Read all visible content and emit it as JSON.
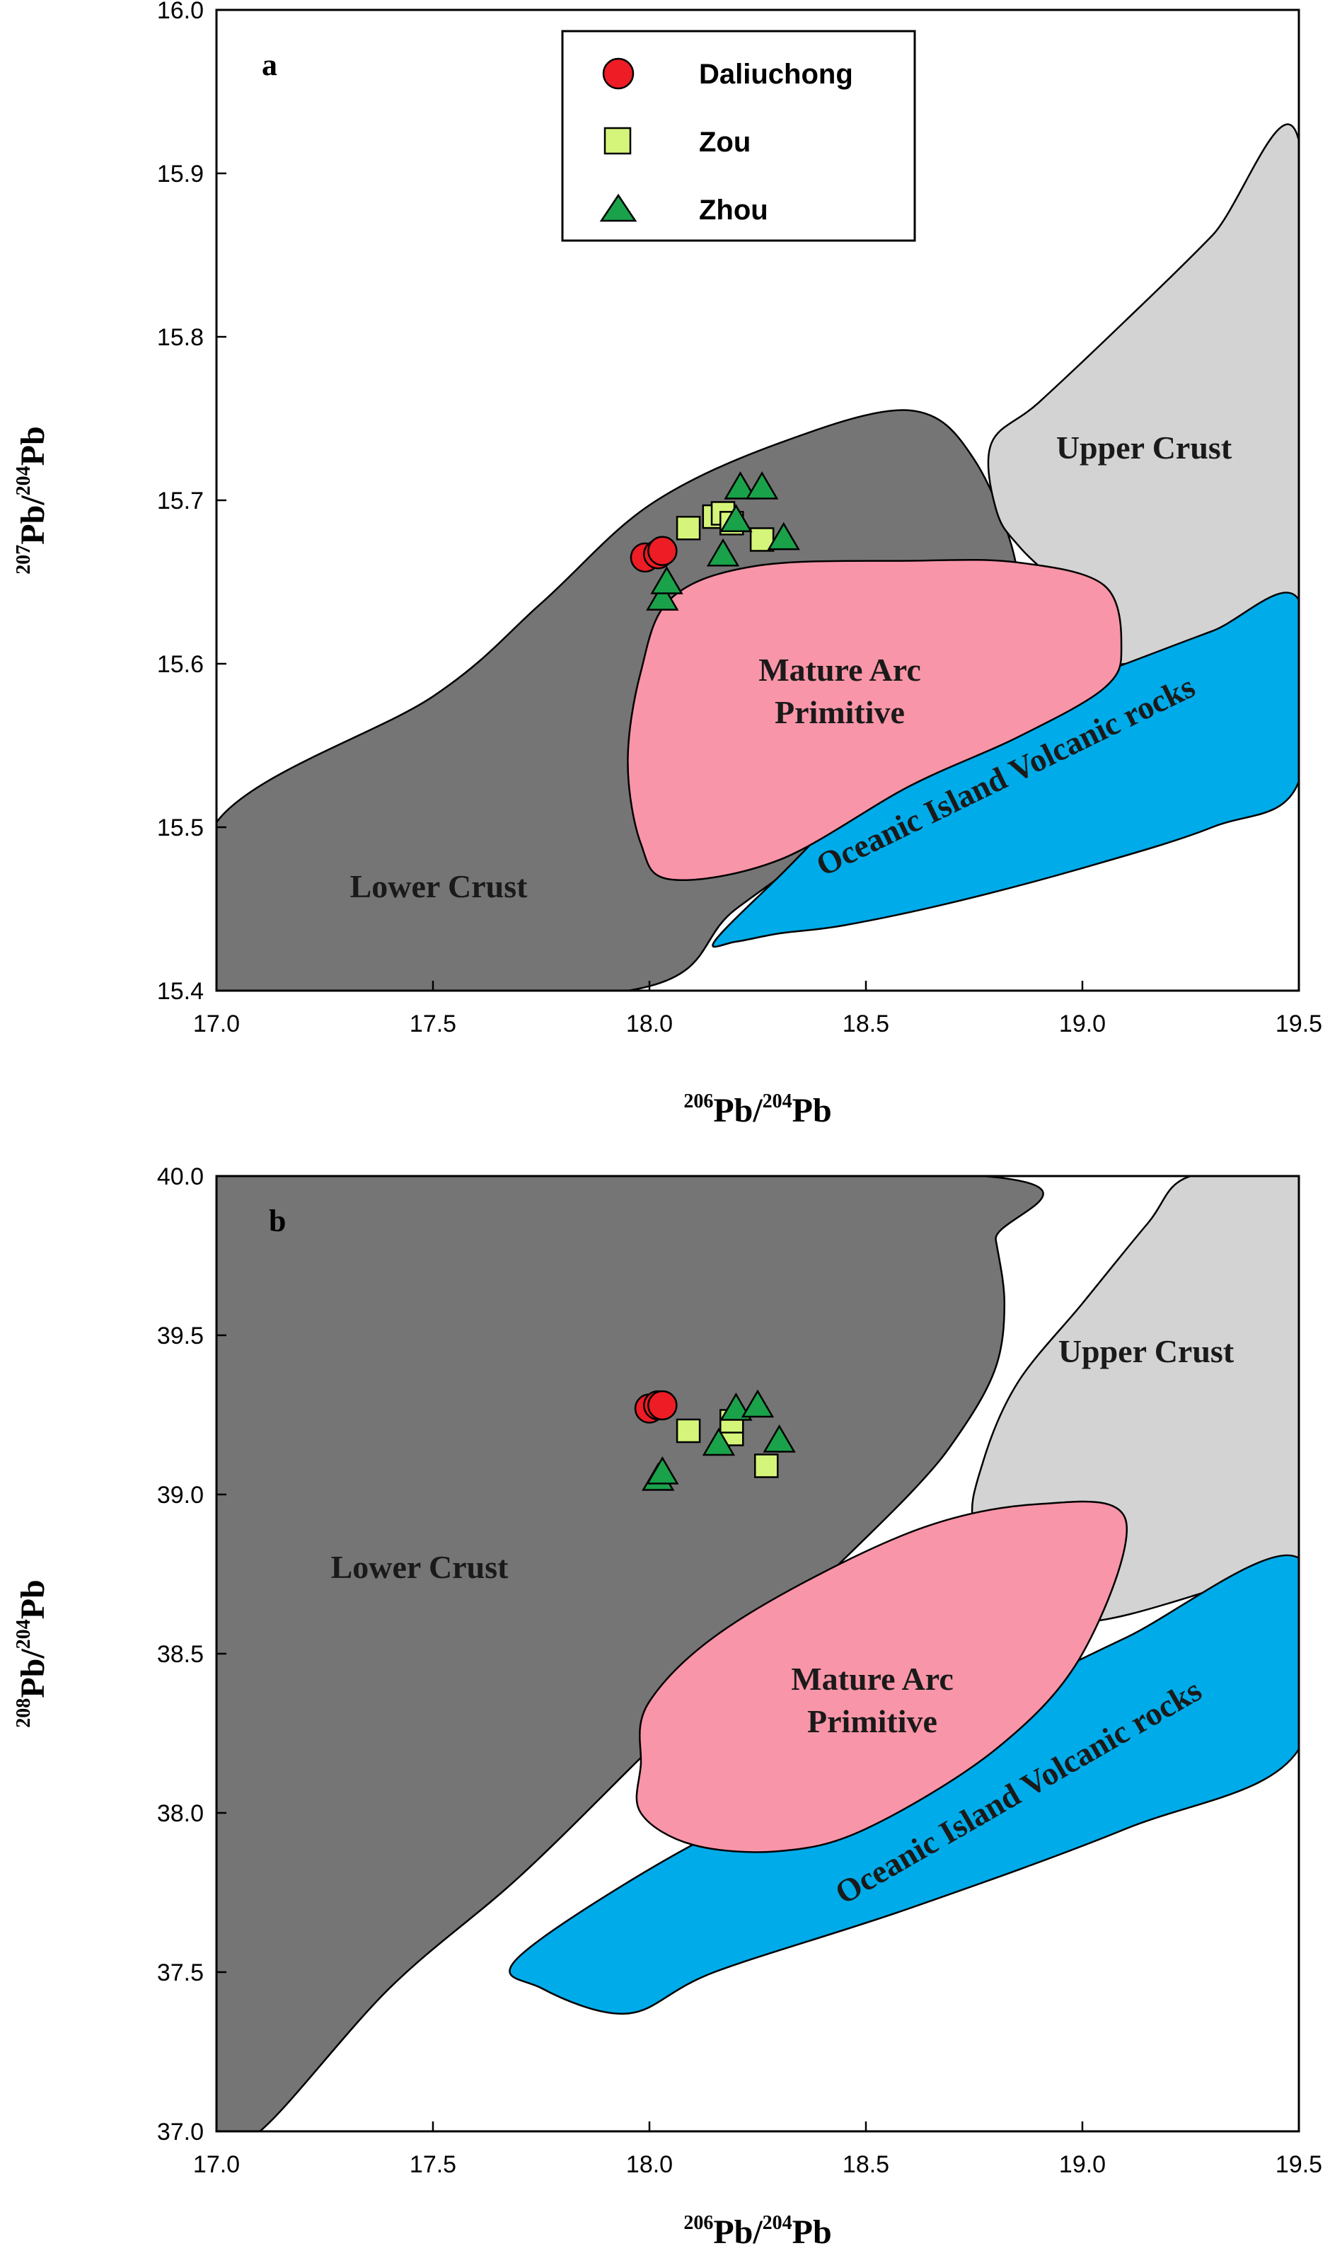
{
  "colors": {
    "lower_crust": "#757575",
    "upper_crust": "#d3d3d3",
    "oib": "#00abe9",
    "arc": "#f995a8",
    "daliuchong": "#ee1c24",
    "zou": "#d4f57a",
    "zhou": "#1aa24a"
  },
  "legend": [
    {
      "name": "Daliuchong",
      "marker": "circle"
    },
    {
      "name": "Zou",
      "marker": "square"
    },
    {
      "name": "Zhou",
      "marker": "triangle"
    }
  ],
  "chart_data": [
    {
      "type": "scatter",
      "panel": "a",
      "xlabel": {
        "sup1": "206",
        "base1": "Pb/",
        "sup2": "204",
        "base2": "Pb"
      },
      "ylabel": {
        "sup1": "207",
        "base1": "Pb/",
        "sup2": "204",
        "base2": "Pb"
      },
      "xlim": [
        17.0,
        19.5
      ],
      "ylim": [
        15.4,
        16.0
      ],
      "xticks": [
        "17.0",
        "17.5",
        "18.0",
        "18.5",
        "19.0",
        "19.5"
      ],
      "yticks": [
        "15.4",
        "15.5",
        "15.6",
        "15.7",
        "15.8",
        "15.9",
        "16.0"
      ],
      "fields": [
        {
          "name": "Lower Crust",
          "label": "Lower Crust",
          "color": "lower_crust",
          "boundary": [
            [
              17.0,
              15.503
            ],
            [
              17.5,
              15.58
            ],
            [
              17.75,
              15.637
            ],
            [
              18.0,
              15.697
            ],
            [
              18.3,
              15.735
            ],
            [
              18.6,
              15.755
            ],
            [
              18.75,
              15.725
            ],
            [
              18.85,
              15.655
            ],
            [
              18.8,
              15.61
            ],
            [
              18.7,
              15.57
            ],
            [
              18.5,
              15.51
            ],
            [
              18.2,
              15.45
            ],
            [
              17.95,
              15.4
            ],
            [
              17.0,
              15.4
            ]
          ]
        },
        {
          "name": "Upper Crust",
          "label": "Upper Crust",
          "color": "upper_crust",
          "boundary": [
            [
              18.79,
              15.735
            ],
            [
              18.9,
              15.76
            ],
            [
              19.1,
              15.81
            ],
            [
              19.3,
              15.862
            ],
            [
              19.5,
              15.92
            ],
            [
              19.5,
              15.639
            ],
            [
              19.3,
              15.62
            ],
            [
              19.1,
              15.6
            ],
            [
              18.95,
              15.605
            ],
            [
              19.05,
              15.62
            ],
            [
              18.86,
              15.67
            ],
            [
              18.8,
              15.695
            ]
          ]
        },
        {
          "name": "Oceanic Island Volcanic rocks",
          "label": "Oceanic Island Volcanic rocks",
          "color": "oib",
          "boundary": [
            [
              18.15,
              15.43
            ],
            [
              18.3,
              15.47
            ],
            [
              18.5,
              15.52
            ],
            [
              18.8,
              15.57
            ],
            [
              19.1,
              15.6
            ],
            [
              19.3,
              15.62
            ],
            [
              19.5,
              15.639
            ],
            [
              19.5,
              15.528
            ],
            [
              19.3,
              15.5
            ],
            [
              19.0,
              15.475
            ],
            [
              18.7,
              15.454
            ],
            [
              18.45,
              15.44
            ],
            [
              18.3,
              15.435
            ],
            [
              18.2,
              15.43
            ]
          ]
        },
        {
          "name": "Mature Arc Primitive",
          "label": [
            "Mature Arc",
            "Primitive"
          ],
          "color": "arc",
          "boundary": [
            [
              17.98,
              15.595
            ],
            [
              18.05,
              15.64
            ],
            [
              18.25,
              15.66
            ],
            [
              18.6,
              15.663
            ],
            [
              18.85,
              15.662
            ],
            [
              19.05,
              15.648
            ],
            [
              19.09,
              15.61
            ],
            [
              19.05,
              15.585
            ],
            [
              18.85,
              15.555
            ],
            [
              18.6,
              15.525
            ],
            [
              18.3,
              15.48
            ],
            [
              18.05,
              15.468
            ],
            [
              17.98,
              15.49
            ],
            [
              17.95,
              15.54
            ]
          ]
        }
      ],
      "series": [
        {
          "name": "Daliuchong",
          "marker": "circle",
          "points": [
            [
              17.99,
              15.665
            ],
            [
              18.02,
              15.667
            ],
            [
              18.03,
              15.669
            ]
          ]
        },
        {
          "name": "Zou",
          "marker": "square",
          "points": [
            [
              18.09,
              15.683
            ],
            [
              18.15,
              15.69
            ],
            [
              18.17,
              15.692
            ],
            [
              18.19,
              15.686
            ],
            [
              18.26,
              15.676
            ]
          ]
        },
        {
          "name": "Zhou",
          "marker": "triangle",
          "points": [
            [
              18.03,
              15.64
            ],
            [
              18.04,
              15.65
            ],
            [
              18.17,
              15.667
            ],
            [
              18.2,
              15.688
            ],
            [
              18.21,
              15.708
            ],
            [
              18.26,
              15.708
            ],
            [
              18.31,
              15.677
            ]
          ]
        }
      ]
    },
    {
      "type": "scatter",
      "panel": "b",
      "xlabel": {
        "sup1": "206",
        "base1": "Pb/",
        "sup2": "204",
        "base2": "Pb"
      },
      "ylabel": {
        "sup1": "208",
        "base1": "Pb/",
        "sup2": "204",
        "base2": "Pb"
      },
      "xlim": [
        17.0,
        19.5
      ],
      "ylim": [
        37.0,
        40.0
      ],
      "xticks": [
        "17.0",
        "17.5",
        "18.0",
        "18.5",
        "19.0",
        "19.5"
      ],
      "yticks": [
        "37.0",
        "37.5",
        "38.0",
        "38.5",
        "39.0",
        "39.5",
        "40.0"
      ],
      "fields": [
        {
          "name": "Lower Crust",
          "label": "Lower Crust",
          "color": "lower_crust",
          "boundary": [
            [
              17.0,
              40.0
            ],
            [
              18.77,
              40.0
            ],
            [
              18.8,
              39.8
            ],
            [
              18.82,
              39.6
            ],
            [
              18.8,
              39.4
            ],
            [
              18.72,
              39.2
            ],
            [
              18.6,
              39.0
            ],
            [
              18.3,
              38.6
            ],
            [
              18.0,
              38.2
            ],
            [
              17.7,
              37.8
            ],
            [
              17.4,
              37.45
            ],
            [
              17.1,
              37.0
            ],
            [
              17.0,
              37.0
            ]
          ]
        },
        {
          "name": "Upper Crust",
          "label": "Upper Crust",
          "color": "upper_crust",
          "boundary": [
            [
              19.25,
              40.0
            ],
            [
              19.5,
              40.0
            ],
            [
              19.5,
              38.8
            ],
            [
              19.3,
              38.7
            ],
            [
              19.0,
              38.6
            ],
            [
              18.85,
              38.7
            ],
            [
              18.75,
              38.9
            ],
            [
              18.77,
              39.1
            ],
            [
              18.85,
              39.35
            ],
            [
              19.0,
              39.6
            ],
            [
              19.15,
              39.85
            ]
          ]
        },
        {
          "name": "Oceanic Island Volcanic rocks",
          "label": "Oceanic Island Volcanic rocks",
          "color": "oib",
          "boundary": [
            [
              17.7,
              37.55
            ],
            [
              18.1,
              37.9
            ],
            [
              18.45,
              38.1
            ],
            [
              18.8,
              38.35
            ],
            [
              19.1,
              38.55
            ],
            [
              19.5,
              38.8
            ],
            [
              19.5,
              38.2
            ],
            [
              19.1,
              37.95
            ],
            [
              18.6,
              37.7
            ],
            [
              18.15,
              37.5
            ],
            [
              17.95,
              37.37
            ],
            [
              17.75,
              37.45
            ]
          ]
        },
        {
          "name": "Mature Arc Primitive",
          "label": [
            "Mature Arc",
            "Primitive"
          ],
          "color": "arc",
          "boundary": [
            [
              17.98,
              38.15
            ],
            [
              18.0,
              38.35
            ],
            [
              18.2,
              38.6
            ],
            [
              18.6,
              38.88
            ],
            [
              18.9,
              38.97
            ],
            [
              19.1,
              38.92
            ],
            [
              19.0,
              38.5
            ],
            [
              18.8,
              38.2
            ],
            [
              18.5,
              37.95
            ],
            [
              18.3,
              37.88
            ],
            [
              18.1,
              37.9
            ],
            [
              17.98,
              38.0
            ]
          ]
        }
      ],
      "series": [
        {
          "name": "Daliuchong",
          "marker": "circle",
          "points": [
            [
              18.0,
              39.27
            ],
            [
              18.02,
              39.28
            ],
            [
              18.03,
              39.28
            ]
          ]
        },
        {
          "name": "Zou",
          "marker": "square",
          "points": [
            [
              18.09,
              39.2
            ],
            [
              18.19,
              39.19
            ],
            [
              18.19,
              39.23
            ],
            [
              18.27,
              39.09
            ]
          ]
        },
        {
          "name": "Zhou",
          "marker": "triangle",
          "points": [
            [
              18.02,
              39.05
            ],
            [
              18.03,
              39.07
            ],
            [
              18.16,
              39.16
            ],
            [
              18.2,
              39.27
            ],
            [
              18.25,
              39.28
            ],
            [
              18.3,
              39.17
            ]
          ]
        }
      ]
    }
  ]
}
